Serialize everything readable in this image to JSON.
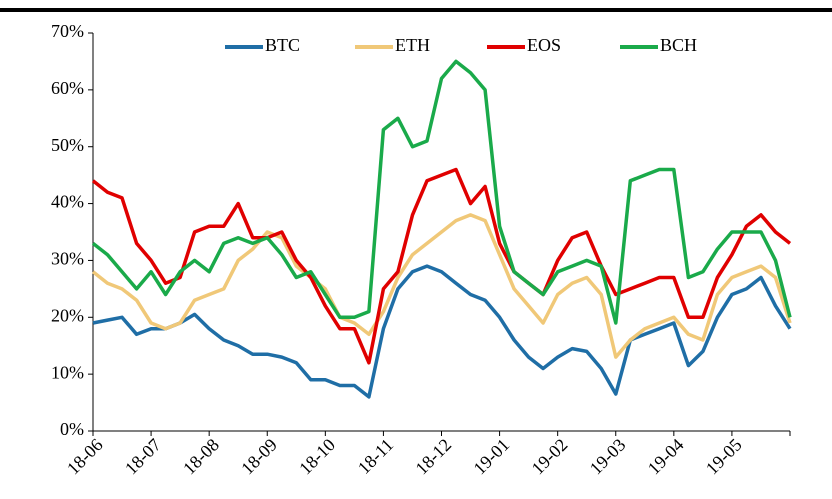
{
  "chart_data": {
    "type": "line",
    "categories": [
      "18-06",
      null,
      null,
      null,
      "18-07",
      null,
      null,
      null,
      "18-08",
      null,
      null,
      null,
      "18-09",
      null,
      null,
      null,
      "18-10",
      null,
      null,
      null,
      "18-11",
      null,
      null,
      null,
      "18-12",
      null,
      null,
      null,
      "19-01",
      null,
      null,
      null,
      "19-02",
      null,
      null,
      null,
      "19-03",
      null,
      null,
      null,
      "19-04",
      null,
      null,
      null,
      "19-05",
      null,
      null,
      null,
      null
    ],
    "series": [
      {
        "name": "BTC",
        "color": "#1f6ea6",
        "values": [
          19,
          19.5,
          20,
          17,
          18,
          18,
          19,
          20.5,
          18,
          16,
          15,
          13.5,
          13.5,
          13,
          12,
          9,
          9,
          8,
          8,
          6,
          18,
          25,
          28,
          29,
          28,
          26,
          24,
          23,
          20,
          16,
          13,
          11,
          13,
          14.5,
          14,
          11,
          6.5,
          16,
          17,
          18,
          19,
          11.5,
          14,
          20,
          24,
          25,
          27,
          22,
          18
        ]
      },
      {
        "name": "ETH",
        "color": "#f0c878",
        "values": [
          28,
          26,
          25,
          23,
          19,
          18,
          19,
          23,
          24,
          25,
          30,
          32,
          35,
          34,
          29,
          27,
          25,
          20,
          19,
          17,
          21,
          27,
          31,
          33,
          35,
          37,
          38,
          37,
          31,
          25,
          22,
          19,
          24,
          26,
          27,
          24,
          13,
          16,
          18,
          19,
          20,
          17,
          16,
          24,
          27,
          28,
          29,
          27,
          19
        ]
      },
      {
        "name": "EOS",
        "color": "#e00000",
        "values": [
          44,
          42,
          41,
          33,
          30,
          26,
          27,
          35,
          36,
          36,
          40,
          34,
          34,
          35,
          30,
          27,
          22,
          18,
          18,
          12,
          25,
          28,
          38,
          44,
          45,
          46,
          40,
          43,
          33,
          28,
          26,
          24,
          30,
          34,
          35,
          29,
          24,
          25,
          26,
          27,
          27,
          20,
          20,
          27,
          31,
          36,
          38,
          35,
          33
        ]
      },
      {
        "name": "BCH",
        "color": "#1aaa4a",
        "values": [
          33,
          31,
          28,
          25,
          28,
          24,
          28,
          30,
          28,
          33,
          34,
          33,
          34,
          31,
          27,
          28,
          24,
          20,
          20,
          21,
          53,
          55,
          50,
          51,
          62,
          65,
          63,
          60,
          36,
          28,
          26,
          24,
          28,
          29,
          30,
          29,
          19,
          44,
          45,
          46,
          46,
          27,
          28,
          32,
          35,
          35,
          35,
          30,
          20
        ]
      }
    ],
    "ylim": [
      0,
      70
    ],
    "yticks": [
      {
        "value": 0,
        "label": "0%"
      },
      {
        "value": 10,
        "label": "10%"
      },
      {
        "value": 20,
        "label": "20%"
      },
      {
        "value": 30,
        "label": "30%"
      },
      {
        "value": 40,
        "label": "40%"
      },
      {
        "value": 50,
        "label": "50%"
      },
      {
        "value": 60,
        "label": "60%"
      },
      {
        "value": 70,
        "label": "70%"
      }
    ],
    "legend": "top"
  }
}
